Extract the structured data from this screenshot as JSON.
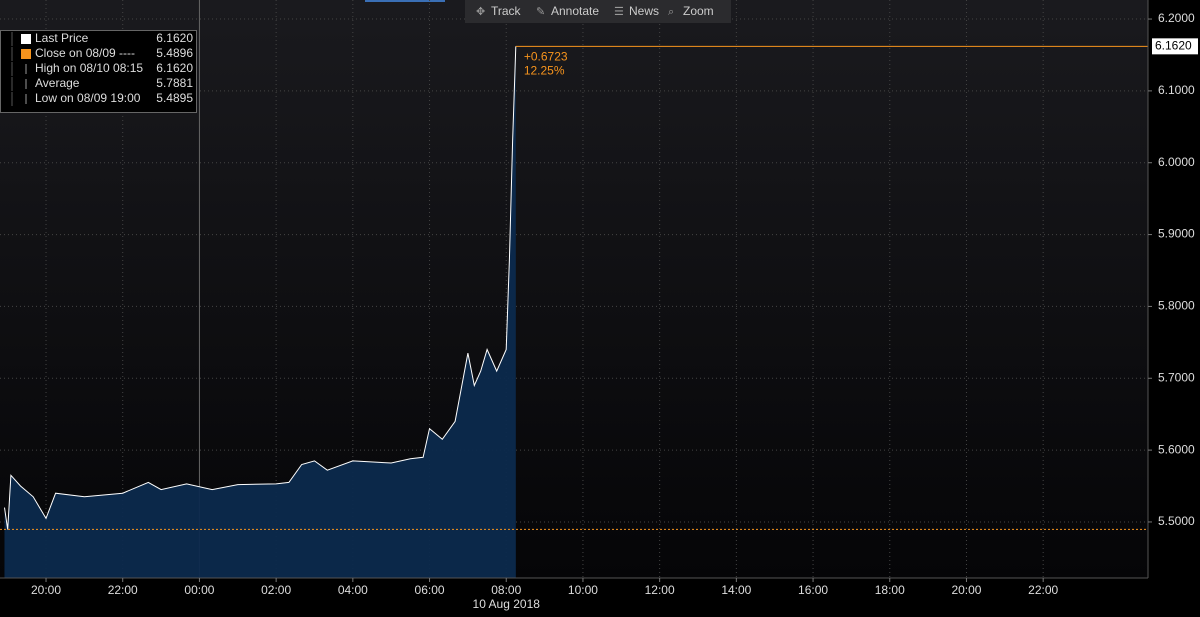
{
  "chart_data": {
    "type": "area",
    "toolbar": [
      "Track",
      "Annotate",
      "News",
      "Zoom"
    ],
    "legend_items": [
      {
        "label": "Last Price",
        "value": 6.162,
        "value_label": "6.1620",
        "color": "#ffffff"
      },
      {
        "label": "Close on 08/09 ----",
        "value": 5.4896,
        "value_label": "5.4896",
        "color": "#f7941d"
      },
      {
        "label": "High on 08/10 08:15",
        "value": 6.162,
        "value_label": "6.1620"
      },
      {
        "label": "Average",
        "value": 5.7881,
        "value_label": "5.7881"
      },
      {
        "label": "Low on 08/09 19:00",
        "value": 5.4895,
        "value_label": "5.4895"
      }
    ],
    "change": {
      "value": 0.6723,
      "label": "+0.6723"
    },
    "change_pct": {
      "value": 12.25,
      "label": "12.25%"
    },
    "date_label": "10 Aug 2018",
    "x": [
      "08/09 18:55",
      "08/09 19:00",
      "08/09 19:05",
      "08/09 19:20",
      "08/09 19:40",
      "08/09 20:00",
      "08/09 20:15",
      "08/09 21:00",
      "08/09 22:00",
      "08/09 22:40",
      "08/09 23:00",
      "08/09 23:40",
      "08/10 00:20",
      "08/10 01:00",
      "08/10 02:00",
      "08/10 02:20",
      "08/10 02:40",
      "08/10 03:00",
      "08/10 03:20",
      "08/10 04:00",
      "08/10 05:00",
      "08/10 05:30",
      "08/10 05:50",
      "08/10 06:00",
      "08/10 06:20",
      "08/10 06:40",
      "08/10 07:00",
      "08/10 07:10",
      "08/10 07:20",
      "08/10 07:30",
      "08/10 07:45",
      "08/10 08:00",
      "08/10 08:05",
      "08/10 08:10",
      "08/10 08:15"
    ],
    "values": [
      5.52,
      5.4895,
      5.565,
      5.55,
      5.535,
      5.505,
      5.54,
      5.535,
      5.54,
      5.555,
      5.545,
      5.553,
      5.545,
      5.552,
      5.553,
      5.555,
      5.58,
      5.585,
      5.572,
      5.585,
      5.582,
      5.588,
      5.59,
      5.63,
      5.615,
      5.64,
      5.735,
      5.69,
      5.71,
      5.74,
      5.71,
      5.74,
      5.865,
      6.03,
      6.162
    ],
    "line_color": "#ffffff",
    "area_color": "#0c2a4d",
    "xlim": [
      "08/09 18:48",
      "08/11 00:44"
    ],
    "xticks": [
      {
        "value": "08/09 20:00",
        "label": "20:00"
      },
      {
        "value": "08/09 22:00",
        "label": "22:00"
      },
      {
        "value": "08/10 00:00",
        "label": "00:00"
      },
      {
        "value": "08/10 02:00",
        "label": "02:00"
      },
      {
        "value": "08/10 04:00",
        "label": "04:00"
      },
      {
        "value": "08/10 06:00",
        "label": "06:00"
      },
      {
        "value": "08/10 08:00",
        "label": "08:00"
      },
      {
        "value": "08/10 10:00",
        "label": "10:00"
      },
      {
        "value": "08/10 12:00",
        "label": "12:00"
      },
      {
        "value": "08/10 14:00",
        "label": "14:00"
      },
      {
        "value": "08/10 16:00",
        "label": "16:00"
      },
      {
        "value": "08/10 18:00",
        "label": "18:00"
      },
      {
        "value": "08/10 20:00",
        "label": "20:00"
      },
      {
        "value": "08/10 22:00",
        "label": "22:00"
      }
    ],
    "ylim": [
      5.422,
      6.2265
    ],
    "yticks": [
      {
        "value": 5.5,
        "label": "5.5000"
      },
      {
        "value": 5.6,
        "label": "5.6000"
      },
      {
        "value": 5.7,
        "label": "5.7000"
      },
      {
        "value": 5.8,
        "label": "5.8000"
      },
      {
        "value": 5.9,
        "label": "5.9000"
      },
      {
        "value": 6.0,
        "label": "6.0000"
      },
      {
        "value": 6.1,
        "label": "6.1000"
      },
      {
        "value": 6.2,
        "label": "6.2000"
      }
    ],
    "grid": true
  }
}
